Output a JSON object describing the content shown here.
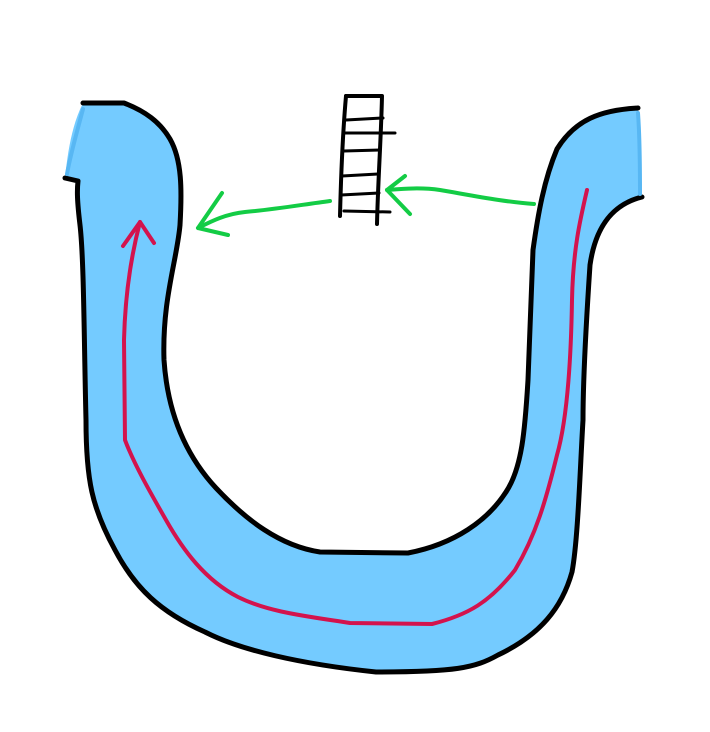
{
  "diagram": {
    "kind": "hand-drawn sketch",
    "colors": {
      "background": "#ffffff",
      "channel_fill": "#74cbff",
      "channel_edge": "#58b7f3",
      "outline": "#000000",
      "flow_arrow": "#d3134d",
      "shortcut_arrow": "#13cc45"
    },
    "elements": [
      {
        "name": "u-shaped-channel",
        "shape": "u-shape",
        "color": "channel_fill"
      },
      {
        "name": "flow-arrow",
        "shape": "arrow",
        "color": "flow_arrow"
      },
      {
        "name": "barrier-ladder",
        "shape": "ladder",
        "color": "outline"
      },
      {
        "name": "shortcut-arrow",
        "shape": "arrow",
        "color": "shortcut_arrow"
      }
    ]
  }
}
